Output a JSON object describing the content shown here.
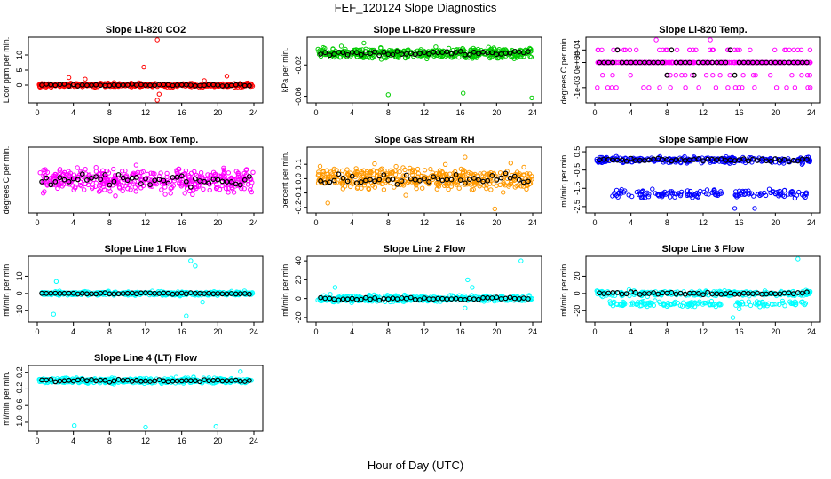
{
  "figure": {
    "title": "FEF_120124  Slope Diagnostics",
    "xlabel": "Hour of Day (UTC)"
  },
  "chart_data": [
    {
      "type": "scatter",
      "title": "Slope Li-820 CO2",
      "ylabel": "Licor ppm per min.",
      "color": "#ff0000",
      "xlim": [
        0,
        24
      ],
      "xticks": [
        0,
        4,
        8,
        12,
        16,
        20,
        24
      ],
      "xtick_labels": [
        "0",
        "4",
        "8",
        "12",
        "16",
        "20",
        "24"
      ],
      "ylim": [
        -5,
        15
      ],
      "yticks": [
        0,
        5,
        10
      ],
      "ytick_labels": [
        "0",
        "5",
        "10"
      ],
      "noise": 0.6,
      "mean": 0,
      "outliers": [
        [
          13.3,
          15
        ],
        [
          11.8,
          6
        ],
        [
          13.5,
          -3
        ],
        [
          13.3,
          -5
        ],
        [
          21,
          3
        ],
        [
          18.5,
          1.5
        ],
        [
          5.3,
          2
        ],
        [
          3.5,
          2.5
        ]
      ],
      "group2": null
    },
    {
      "type": "scatter",
      "title": "Slope Li-820 Pressure",
      "ylabel": "kPa per min.",
      "color": "#00cc00",
      "xlim": [
        0,
        24
      ],
      "xticks": [
        0,
        4,
        8,
        12,
        16,
        20,
        24
      ],
      "xtick_labels": [
        "0",
        "4",
        "8",
        "12",
        "16",
        "20",
        "24"
      ],
      "ylim": [
        -0.065,
        0.012
      ],
      "yticks": [
        -0.02,
        -0.06
      ],
      "ytick_labels": [
        "-0.02",
        "-0.06"
      ],
      "noise": 0.006,
      "mean": -0.005,
      "outliers": [
        [
          8,
          -0.058
        ],
        [
          16.3,
          -0.056
        ],
        [
          23.9,
          -0.062
        ],
        [
          5.3,
          0.008
        ]
      ],
      "group2": null
    },
    {
      "type": "scatter",
      "title": "Slope Li-820 Temp.",
      "ylabel": "degrees C per min.",
      "color": "#ff00ff",
      "xlim": [
        0,
        24
      ],
      "xticks": [
        0,
        4,
        8,
        12,
        16,
        20,
        24
      ],
      "xtick_labels": [
        "0",
        "4",
        "8",
        "12",
        "16",
        "20",
        "24"
      ],
      "ylim": [
        -0.0015,
        0.0009
      ],
      "yticks": [
        0.0005,
        0,
        -0.001
      ],
      "ytick_labels": [
        "5e-04",
        "0e+00",
        "-1e-03"
      ],
      "levels": [
        0.0005,
        0,
        -0.0005,
        -0.001
      ],
      "outliers": [
        [
          6.8,
          0.0009
        ],
        [
          12.8,
          0.0009
        ]
      ],
      "group2": null
    },
    {
      "type": "scatter",
      "title": "Slope Amb. Box Temp.",
      "ylabel": "degrees C per min.",
      "color": "#ff00ff",
      "xlim": [
        0,
        24
      ],
      "xticks": [
        0,
        4,
        8,
        12,
        16,
        20,
        24
      ],
      "xtick_labels": [
        "0",
        "4",
        "8",
        "12",
        "16",
        "20",
        "24"
      ],
      "ylim": [
        -1,
        1
      ],
      "yticks": [],
      "ytick_labels": [],
      "noise": 0.35,
      "mean": 0,
      "outliers": [],
      "group2": null
    },
    {
      "type": "scatter",
      "title": "Slope Gas Stream RH",
      "ylabel": "percent per min.",
      "color": "#ff9900",
      "xlim": [
        0,
        24
      ],
      "xticks": [
        0,
        4,
        8,
        12,
        16,
        20,
        24
      ],
      "xtick_labels": [
        "0",
        "4",
        "8",
        "12",
        "16",
        "20",
        "24"
      ],
      "ylim": [
        -0.22,
        0.2
      ],
      "yticks": [
        0.1,
        0,
        -0.1,
        -0.2
      ],
      "ytick_labels": [
        "0.1",
        "0.0",
        "-0.1",
        "-0.2"
      ],
      "noise": 0.07,
      "mean": 0,
      "outliers": [
        [
          1.3,
          -0.17
        ],
        [
          16.5,
          0.15
        ],
        [
          19.8,
          -0.21
        ]
      ],
      "group2": null
    },
    {
      "type": "scatter",
      "title": "Slope Sample Flow",
      "ylabel": "ml/min per min.",
      "color": "#0000ff",
      "xlim": [
        0,
        24
      ],
      "xticks": [
        0,
        4,
        8,
        12,
        16,
        20,
        24
      ],
      "xtick_labels": [
        "0",
        "4",
        "8",
        "12",
        "16",
        "20",
        "24"
      ],
      "ylim": [
        -2.7,
        0.6
      ],
      "yticks": [
        0.5,
        -0.5,
        -1.5,
        -2.5
      ],
      "ytick_labels": [
        "0.5",
        "-0.5",
        "-1.5",
        "-2.5"
      ],
      "noise": 0.15,
      "mean": 0.05,
      "outliers": [
        [
          15.5,
          -2.6
        ],
        [
          17.7,
          -2.6
        ]
      ],
      "group2": {
        "mean": -1.8,
        "noise": 0.2
      }
    },
    {
      "type": "scatter",
      "title": "Slope Line 1 Flow",
      "ylabel": "ml/min per min.",
      "color": "#00ffff",
      "xlim": [
        0,
        24
      ],
      "xticks": [
        0,
        4,
        8,
        12,
        16,
        20,
        24
      ],
      "xtick_labels": [
        "0",
        "4",
        "8",
        "12",
        "16",
        "20",
        "24"
      ],
      "ylim": [
        -15,
        20
      ],
      "yticks": [
        10,
        0,
        -10
      ],
      "ytick_labels": [
        "10",
        "0",
        "-10"
      ],
      "noise": 1.0,
      "mean": 0,
      "outliers": [
        [
          17,
          19
        ],
        [
          17.5,
          16
        ],
        [
          16.5,
          -13
        ],
        [
          1.8,
          -12
        ],
        [
          2.1,
          7
        ],
        [
          18.3,
          -5
        ]
      ],
      "group2": null
    },
    {
      "type": "scatter",
      "title": "Slope Line 2 Flow",
      "ylabel": "ml/min per min.",
      "color": "#00ffff",
      "xlim": [
        0,
        24
      ],
      "xticks": [
        0,
        4,
        8,
        12,
        16,
        20,
        24
      ],
      "xtick_labels": [
        "0",
        "4",
        "8",
        "12",
        "16",
        "20",
        "24"
      ],
      "ylim": [
        -22,
        42
      ],
      "yticks": [
        40,
        20,
        0,
        -20
      ],
      "ytick_labels": [
        "40",
        "20",
        "0",
        "-20"
      ],
      "noise": 3,
      "mean": 0,
      "outliers": [
        [
          22.7,
          40
        ],
        [
          16.8,
          20
        ],
        [
          17.3,
          12
        ],
        [
          2.1,
          12
        ],
        [
          16.5,
          -10
        ]
      ],
      "group2": null
    },
    {
      "type": "scatter",
      "title": "Slope Line 3 Flow",
      "ylabel": "ml/min per min.",
      "color": "#00ffff",
      "xlim": [
        0,
        24
      ],
      "xticks": [
        0,
        4,
        8,
        12,
        16,
        20,
        24
      ],
      "xtick_labels": [
        "0",
        "4",
        "8",
        "12",
        "16",
        "20",
        "24"
      ],
      "ylim": [
        -30,
        40
      ],
      "yticks": [
        20,
        0,
        -20
      ],
      "ytick_labels": [
        "20",
        "0",
        "-20"
      ],
      "noise": 3,
      "mean": 0,
      "outliers": [
        [
          22.5,
          40
        ],
        [
          15.3,
          -28
        ],
        [
          16,
          -18
        ]
      ],
      "group2": {
        "mean": -12,
        "noise": 3
      }
    },
    {
      "type": "scatter",
      "title": "Slope Line 4 (LT) Flow",
      "ylabel": "ml/min per min.",
      "color": "#00ffff",
      "xlim": [
        0,
        24
      ],
      "xticks": [
        0,
        4,
        8,
        12,
        16,
        20,
        24
      ],
      "xtick_labels": [
        "0",
        "4",
        "8",
        "12",
        "16",
        "20",
        "24"
      ],
      "ylim": [
        -1.15,
        0.3
      ],
      "yticks": [
        0.2,
        -0.2,
        -0.6,
        -1.0
      ],
      "ytick_labels": [
        "0.2",
        "-0.2",
        "-0.6",
        "-1.0"
      ],
      "noise": 0.06,
      "mean": 0,
      "outliers": [
        [
          4.1,
          -1.08
        ],
        [
          12,
          -1.12
        ],
        [
          19.8,
          -1.1
        ],
        [
          22.5,
          0.22
        ]
      ],
      "group2": null
    }
  ]
}
